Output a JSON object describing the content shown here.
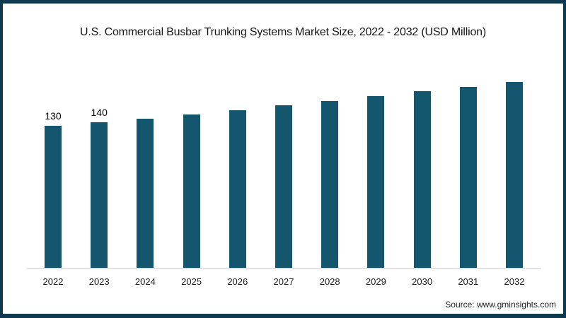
{
  "title": "U.S. Commercial Busbar Trunking Systems Market Size, 2022 - 2032 (USD Million)",
  "source": "Source: www.gminsights.com",
  "frame": {
    "border_color": "#0E3A50",
    "background": "#ffffff"
  },
  "chart_data": {
    "type": "bar",
    "title": "U.S. Commercial Busbar Trunking Systems Market Size, 2022 - 2032 (USD Million)",
    "unit": "USD Million",
    "categories": [
      "2022",
      "2023",
      "2024",
      "2025",
      "2026",
      "2027",
      "2028",
      "2029",
      "2030",
      "2031",
      "2032"
    ],
    "values": [
      130,
      140,
      150,
      162,
      174,
      188,
      200,
      213,
      227,
      240,
      254
    ],
    "data_labels": [
      "130",
      "140",
      "",
      "",
      "",
      "",
      "",
      "",
      "",
      "",
      ""
    ],
    "bar_color": "#13566D",
    "axis_line_color": "#E1E1E1",
    "xlabel": "",
    "ylabel": "",
    "y_axis_visible": false,
    "gridlines": false,
    "legend_position": "none"
  }
}
